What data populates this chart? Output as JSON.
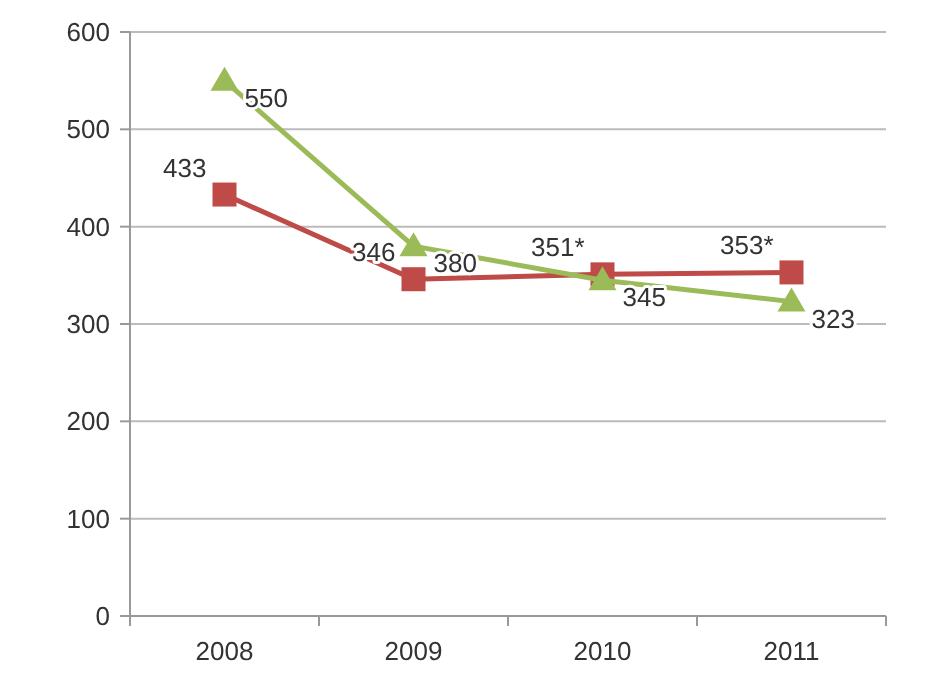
{
  "chart_data": {
    "type": "line",
    "categories": [
      "2008",
      "2009",
      "2010",
      "2011"
    ],
    "series": [
      {
        "color": "#be4b48",
        "marker": "square",
        "values": [
          433,
          346,
          351,
          353
        ],
        "value_labels": [
          "433",
          "346",
          "351*",
          "353*"
        ]
      },
      {
        "color": "#9bbb59",
        "marker": "triangle",
        "values": [
          550,
          380,
          345,
          323
        ],
        "value_labels": [
          "550",
          "380",
          "345",
          "323"
        ]
      }
    ],
    "ylim": [
      0,
      600
    ],
    "yticks": [
      0,
      100,
      200,
      300,
      400,
      500,
      600
    ],
    "grid": "y"
  }
}
